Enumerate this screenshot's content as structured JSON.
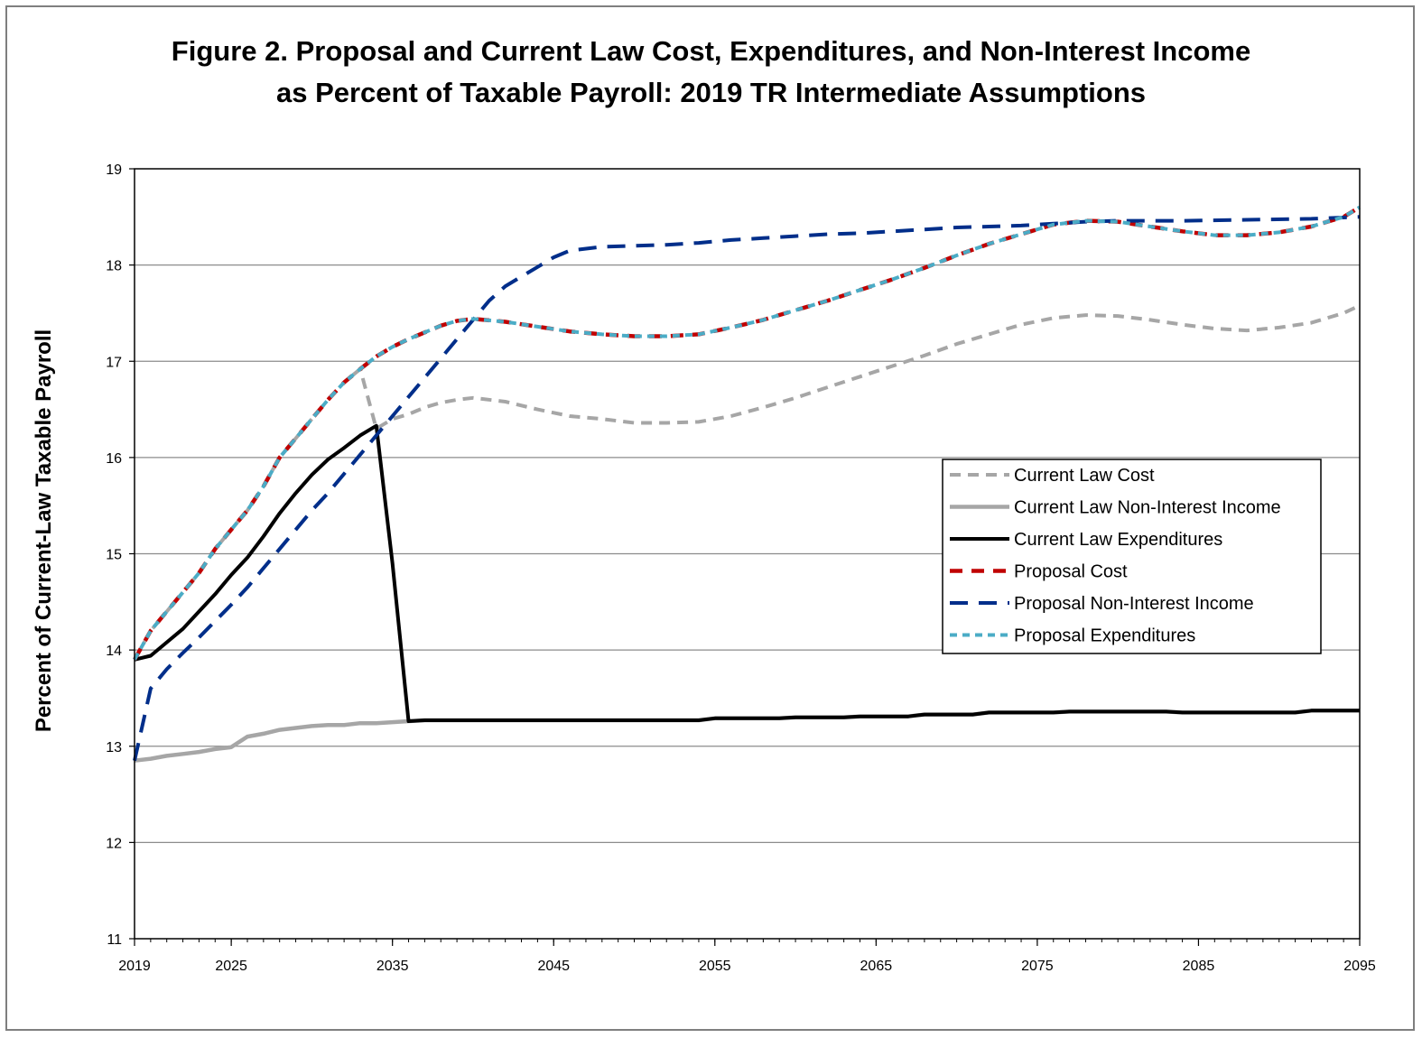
{
  "chart_data": {
    "type": "line",
    "title": "Figure 2.  Proposal and Current Law Cost, Expenditures, and Non-Interest Income",
    "subtitle": "as Percent of Taxable Payroll: 2019 TR Intermediate Assumptions",
    "xlabel": "",
    "ylabel": "Percent of Current-Law Taxable Payroll",
    "xlim": [
      2019,
      2095
    ],
    "ylim": [
      11,
      19
    ],
    "x_ticks": [
      "2019",
      "2025",
      "2035",
      "2045",
      "2055",
      "2065",
      "2075",
      "2085",
      "2095"
    ],
    "y_ticks": [
      "11",
      "12",
      "13",
      "14",
      "15",
      "16",
      "17",
      "18",
      "19"
    ],
    "grid": "horizontal",
    "legend_position": "center-right",
    "series": [
      {
        "name": "Current Law Cost",
        "color": "#a6a6a6",
        "style": "dashed",
        "points": [
          [
            2019,
            13.9
          ],
          [
            2020,
            14.2
          ],
          [
            2021,
            14.4
          ],
          [
            2022,
            14.6
          ],
          [
            2023,
            14.8
          ],
          [
            2024,
            15.05
          ],
          [
            2025,
            15.25
          ],
          [
            2026,
            15.45
          ],
          [
            2027,
            15.7
          ],
          [
            2028,
            16.0
          ],
          [
            2029,
            16.2
          ],
          [
            2030,
            16.4
          ],
          [
            2031,
            16.6
          ],
          [
            2032,
            16.78
          ],
          [
            2033,
            16.92
          ],
          [
            2034,
            16.3
          ],
          [
            2035,
            16.4
          ],
          [
            2036,
            16.45
          ],
          [
            2037,
            16.52
          ],
          [
            2038,
            16.57
          ],
          [
            2039,
            16.6
          ],
          [
            2040,
            16.62
          ],
          [
            2042,
            16.58
          ],
          [
            2044,
            16.5
          ],
          [
            2046,
            16.43
          ],
          [
            2048,
            16.4
          ],
          [
            2050,
            16.36
          ],
          [
            2052,
            16.36
          ],
          [
            2054,
            16.37
          ],
          [
            2056,
            16.43
          ],
          [
            2058,
            16.52
          ],
          [
            2060,
            16.62
          ],
          [
            2062,
            16.73
          ],
          [
            2064,
            16.84
          ],
          [
            2066,
            16.95
          ],
          [
            2068,
            17.06
          ],
          [
            2070,
            17.18
          ],
          [
            2072,
            17.28
          ],
          [
            2074,
            17.38
          ],
          [
            2076,
            17.45
          ],
          [
            2078,
            17.48
          ],
          [
            2080,
            17.47
          ],
          [
            2082,
            17.43
          ],
          [
            2084,
            17.38
          ],
          [
            2086,
            17.34
          ],
          [
            2088,
            17.32
          ],
          [
            2090,
            17.35
          ],
          [
            2092,
            17.4
          ],
          [
            2094,
            17.5
          ],
          [
            2095,
            17.58
          ]
        ]
      },
      {
        "name": "Current Law Non-Interest Income",
        "color": "#a6a6a6",
        "style": "solid",
        "points": [
          [
            2019,
            12.85
          ],
          [
            2020,
            12.87
          ],
          [
            2021,
            12.9
          ],
          [
            2022,
            12.92
          ],
          [
            2023,
            12.94
          ],
          [
            2024,
            12.97
          ],
          [
            2025,
            12.99
          ],
          [
            2026,
            13.1
          ],
          [
            2027,
            13.13
          ],
          [
            2028,
            13.17
          ],
          [
            2029,
            13.19
          ],
          [
            2030,
            13.21
          ],
          [
            2031,
            13.22
          ],
          [
            2032,
            13.22
          ],
          [
            2033,
            13.24
          ],
          [
            2034,
            13.24
          ],
          [
            2035,
            13.25
          ],
          [
            2036,
            13.26
          ],
          [
            2037,
            13.27
          ],
          [
            2040,
            13.27
          ],
          [
            2050,
            13.27
          ],
          [
            2054,
            13.27
          ],
          [
            2055,
            13.29
          ],
          [
            2059,
            13.29
          ],
          [
            2060,
            13.3
          ],
          [
            2063,
            13.3
          ],
          [
            2064,
            13.31
          ],
          [
            2067,
            13.31
          ],
          [
            2068,
            13.33
          ],
          [
            2071,
            13.33
          ],
          [
            2072,
            13.35
          ],
          [
            2076,
            13.35
          ],
          [
            2077,
            13.36
          ],
          [
            2083,
            13.36
          ],
          [
            2084,
            13.35
          ],
          [
            2091,
            13.35
          ],
          [
            2092,
            13.37
          ],
          [
            2095,
            13.37
          ]
        ]
      },
      {
        "name": "Current Law Expenditures",
        "color": "#000000",
        "style": "solid",
        "points": [
          [
            2019,
            13.9
          ],
          [
            2020,
            13.94
          ],
          [
            2021,
            14.08
          ],
          [
            2022,
            14.22
          ],
          [
            2023,
            14.4
          ],
          [
            2024,
            14.58
          ],
          [
            2025,
            14.78
          ],
          [
            2026,
            14.96
          ],
          [
            2027,
            15.18
          ],
          [
            2028,
            15.42
          ],
          [
            2029,
            15.63
          ],
          [
            2030,
            15.82
          ],
          [
            2031,
            15.98
          ],
          [
            2032,
            16.1
          ],
          [
            2033,
            16.23
          ],
          [
            2034,
            16.33
          ],
          [
            2035,
            14.9
          ],
          [
            2036,
            13.26
          ],
          [
            2037,
            13.27
          ],
          [
            2040,
            13.27
          ],
          [
            2050,
            13.27
          ],
          [
            2054,
            13.27
          ],
          [
            2055,
            13.29
          ],
          [
            2059,
            13.29
          ],
          [
            2060,
            13.3
          ],
          [
            2063,
            13.3
          ],
          [
            2064,
            13.31
          ],
          [
            2067,
            13.31
          ],
          [
            2068,
            13.33
          ],
          [
            2071,
            13.33
          ],
          [
            2072,
            13.35
          ],
          [
            2076,
            13.35
          ],
          [
            2077,
            13.36
          ],
          [
            2083,
            13.36
          ],
          [
            2084,
            13.35
          ],
          [
            2091,
            13.35
          ],
          [
            2092,
            13.37
          ],
          [
            2095,
            13.37
          ]
        ]
      },
      {
        "name": "Proposal Cost",
        "color": "#c00000",
        "style": "dashed",
        "points": [
          [
            2019,
            13.9
          ],
          [
            2020,
            14.2
          ],
          [
            2021,
            14.4
          ],
          [
            2022,
            14.6
          ],
          [
            2023,
            14.8
          ],
          [
            2024,
            15.05
          ],
          [
            2025,
            15.25
          ],
          [
            2026,
            15.45
          ],
          [
            2027,
            15.7
          ],
          [
            2028,
            16.0
          ],
          [
            2029,
            16.2
          ],
          [
            2030,
            16.4
          ],
          [
            2031,
            16.6
          ],
          [
            2032,
            16.78
          ],
          [
            2033,
            16.92
          ],
          [
            2034,
            17.05
          ],
          [
            2035,
            17.15
          ],
          [
            2036,
            17.23
          ],
          [
            2037,
            17.3
          ],
          [
            2038,
            17.37
          ],
          [
            2039,
            17.42
          ],
          [
            2040,
            17.44
          ],
          [
            2042,
            17.41
          ],
          [
            2044,
            17.36
          ],
          [
            2046,
            17.31
          ],
          [
            2048,
            17.28
          ],
          [
            2050,
            17.26
          ],
          [
            2052,
            17.26
          ],
          [
            2054,
            17.28
          ],
          [
            2056,
            17.35
          ],
          [
            2058,
            17.43
          ],
          [
            2060,
            17.53
          ],
          [
            2062,
            17.63
          ],
          [
            2064,
            17.74
          ],
          [
            2066,
            17.85
          ],
          [
            2068,
            17.97
          ],
          [
            2070,
            18.1
          ],
          [
            2072,
            18.22
          ],
          [
            2074,
            18.32
          ],
          [
            2076,
            18.42
          ],
          [
            2078,
            18.46
          ],
          [
            2080,
            18.45
          ],
          [
            2082,
            18.4
          ],
          [
            2084,
            18.35
          ],
          [
            2086,
            18.31
          ],
          [
            2088,
            18.31
          ],
          [
            2090,
            18.34
          ],
          [
            2092,
            18.4
          ],
          [
            2094,
            18.5
          ],
          [
            2095,
            18.6
          ]
        ]
      },
      {
        "name": "Proposal Non-Interest Income",
        "color": "#002e8a",
        "style": "dashed",
        "points": [
          [
            2019,
            12.85
          ],
          [
            2020,
            13.6
          ],
          [
            2021,
            13.8
          ],
          [
            2022,
            13.97
          ],
          [
            2023,
            14.13
          ],
          [
            2024,
            14.3
          ],
          [
            2025,
            14.47
          ],
          [
            2026,
            14.65
          ],
          [
            2027,
            14.85
          ],
          [
            2028,
            15.05
          ],
          [
            2029,
            15.25
          ],
          [
            2030,
            15.45
          ],
          [
            2031,
            15.63
          ],
          [
            2032,
            15.83
          ],
          [
            2033,
            16.03
          ],
          [
            2034,
            16.23
          ],
          [
            2035,
            16.43
          ],
          [
            2036,
            16.63
          ],
          [
            2037,
            16.83
          ],
          [
            2038,
            17.03
          ],
          [
            2039,
            17.23
          ],
          [
            2040,
            17.43
          ],
          [
            2041,
            17.63
          ],
          [
            2042,
            17.78
          ],
          [
            2043,
            17.88
          ],
          [
            2044,
            17.98
          ],
          [
            2045,
            18.08
          ],
          [
            2046,
            18.15
          ],
          [
            2048,
            18.19
          ],
          [
            2050,
            18.2
          ],
          [
            2052,
            18.21
          ],
          [
            2054,
            18.23
          ],
          [
            2056,
            18.26
          ],
          [
            2058,
            18.28
          ],
          [
            2060,
            18.3
          ],
          [
            2062,
            18.32
          ],
          [
            2064,
            18.33
          ],
          [
            2066,
            18.35
          ],
          [
            2068,
            18.37
          ],
          [
            2070,
            18.39
          ],
          [
            2072,
            18.4
          ],
          [
            2074,
            18.41
          ],
          [
            2076,
            18.43
          ],
          [
            2078,
            18.45
          ],
          [
            2080,
            18.46
          ],
          [
            2084,
            18.46
          ],
          [
            2088,
            18.47
          ],
          [
            2092,
            18.48
          ],
          [
            2095,
            18.5
          ]
        ]
      },
      {
        "name": "Proposal Expenditures",
        "color": "#4bacc6",
        "style": "dashed",
        "points": [
          [
            2019,
            13.9
          ],
          [
            2020,
            14.2
          ],
          [
            2021,
            14.4
          ],
          [
            2022,
            14.6
          ],
          [
            2023,
            14.8
          ],
          [
            2024,
            15.05
          ],
          [
            2025,
            15.25
          ],
          [
            2026,
            15.45
          ],
          [
            2027,
            15.7
          ],
          [
            2028,
            16.0
          ],
          [
            2029,
            16.2
          ],
          [
            2030,
            16.4
          ],
          [
            2031,
            16.6
          ],
          [
            2032,
            16.78
          ],
          [
            2033,
            16.92
          ],
          [
            2034,
            17.05
          ],
          [
            2035,
            17.15
          ],
          [
            2036,
            17.23
          ],
          [
            2037,
            17.3
          ],
          [
            2038,
            17.37
          ],
          [
            2039,
            17.42
          ],
          [
            2040,
            17.44
          ],
          [
            2042,
            17.41
          ],
          [
            2044,
            17.36
          ],
          [
            2046,
            17.31
          ],
          [
            2048,
            17.28
          ],
          [
            2050,
            17.26
          ],
          [
            2052,
            17.26
          ],
          [
            2054,
            17.28
          ],
          [
            2056,
            17.35
          ],
          [
            2058,
            17.43
          ],
          [
            2060,
            17.53
          ],
          [
            2062,
            17.63
          ],
          [
            2064,
            17.74
          ],
          [
            2066,
            17.85
          ],
          [
            2068,
            17.97
          ],
          [
            2070,
            18.1
          ],
          [
            2072,
            18.22
          ],
          [
            2074,
            18.32
          ],
          [
            2076,
            18.42
          ],
          [
            2078,
            18.46
          ],
          [
            2080,
            18.45
          ],
          [
            2082,
            18.4
          ],
          [
            2084,
            18.35
          ],
          [
            2086,
            18.31
          ],
          [
            2088,
            18.31
          ],
          [
            2090,
            18.34
          ],
          [
            2092,
            18.4
          ],
          [
            2094,
            18.5
          ],
          [
            2095,
            18.6
          ]
        ]
      }
    ]
  }
}
